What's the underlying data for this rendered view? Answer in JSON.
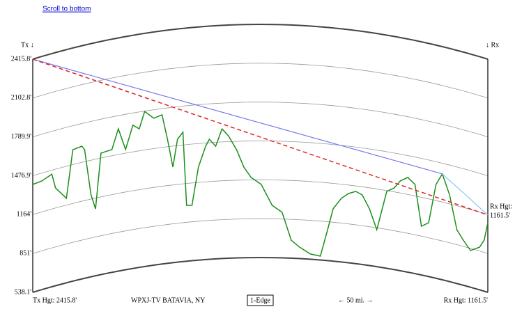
{
  "chart_data": {
    "type": "terrain",
    "link": "Scroll to bottom",
    "tx_marker": "Tx ↓",
    "rx_marker": "↓ Rx",
    "rx_height_title": "Rx Hgt:",
    "tx_height": 2415.8,
    "rx_height": {
      "value": 1161.5,
      "label": "1161.5'"
    },
    "footer": {
      "tx": "Tx Hgt: 2415.8'",
      "station": "WPXJ-TV BATAVIA, NY",
      "mode": "1-Edge",
      "distance": "← 50 mi. →",
      "rx": "Rx Hgt: 1161.5'"
    },
    "xlim": [
      0,
      50
    ],
    "ylim": [
      538.1,
      2415.8
    ],
    "yticks": [
      {
        "value": 538.1,
        "label": "538.1'"
      },
      {
        "value": 851,
        "label": "851'"
      },
      {
        "value": 1164,
        "label": "1164'"
      },
      {
        "value": 1476.9,
        "label": "1476.9'"
      },
      {
        "value": 1789.9,
        "label": "1789.9'"
      },
      {
        "value": 2102.8,
        "label": "2102.8'"
      },
      {
        "value": 2415.8,
        "label": "2415.8'"
      }
    ],
    "grid": true,
    "terrain": {
      "color": "#1a8f1a",
      "x": [
        0,
        1.0,
        2.1,
        2.5,
        3.7,
        4.4,
        5.4,
        5.7,
        6.4,
        6.9,
        7.5,
        8.7,
        9.4,
        10.2,
        11.0,
        11.7,
        12.3,
        13.3,
        14.2,
        14.8,
        15.4,
        15.9,
        16.5,
        16.9,
        17.5,
        18.2,
        19.0,
        19.4,
        20.1,
        20.8,
        21.5,
        22.4,
        23.2,
        24.0,
        25.1,
        26.3,
        27.4,
        28.4,
        29.3,
        30.5,
        31.6,
        32.4,
        33.0,
        33.9,
        34.7,
        35.5,
        36.2,
        37.0,
        37.8,
        38.4,
        38.9,
        39.7,
        40.4,
        41.2,
        42.0,
        42.7,
        43.5,
        44.3,
        45.0,
        45.8,
        46.6,
        47.3,
        48.1,
        49.1,
        49.6,
        50
      ],
      "values": [
        1407,
        1413,
        1445,
        1325,
        1219,
        1596,
        1607,
        1574,
        1198,
        1077,
        1516,
        1527,
        1684,
        1506,
        1692,
        1654,
        1787,
        1721,
        1740,
        1538,
        1308,
        1528,
        1580,
        988,
        984,
        1287,
        1451,
        1505,
        1445,
        1582,
        1524,
        1409,
        1267,
        1183,
        1127,
        959,
        905,
        683,
        631,
        580,
        569,
        787,
        959,
        1050,
        1096,
        1120,
        1099,
        995,
        835,
        1011,
        1158,
        1195,
        1262,
        1301,
        1256,
        931,
        972,
        1293,
        1391,
        1237,
        971,
        902,
        834,
        882,
        950,
        1099
      ]
    },
    "path": {
      "x": [
        0,
        45.0,
        50
      ],
      "values": [
        2415.8,
        1391,
        1161.5
      ],
      "colors": [
        "#7777ee",
        "#88c8ee"
      ]
    },
    "direct": {
      "x": [
        0,
        50
      ],
      "color": "#dd2222"
    }
  }
}
